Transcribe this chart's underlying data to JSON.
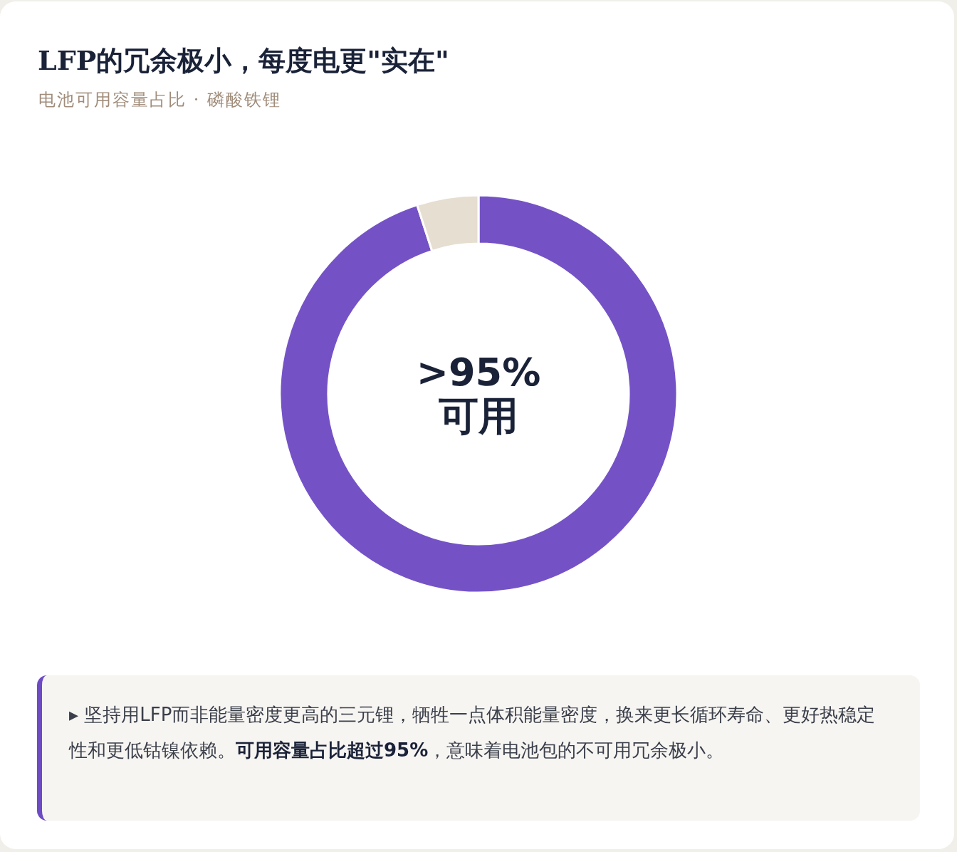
{
  "chart_data": {
    "type": "donut",
    "title": "LFP的冗余极小，每度电更\"实在\"",
    "subtitle": "电池可用容量占比 · 磷酸铁锂",
    "categories": [
      null,
      null
    ],
    "values": [
      95,
      5
    ],
    "colors": [
      "#7452c6",
      "#e5ded1"
    ],
    "annotations": [
      ">95%",
      "可用",
      "▸ 坚持用LFP而非能量密度更高的三元锂，牺牲一点体积能量密度，换来更长循环寿命、更好热稳定性和更低钴镍依赖。**可用容量占比超过95%**，意味着电池包的不可用冗余极小。"
    ]
  }
}
